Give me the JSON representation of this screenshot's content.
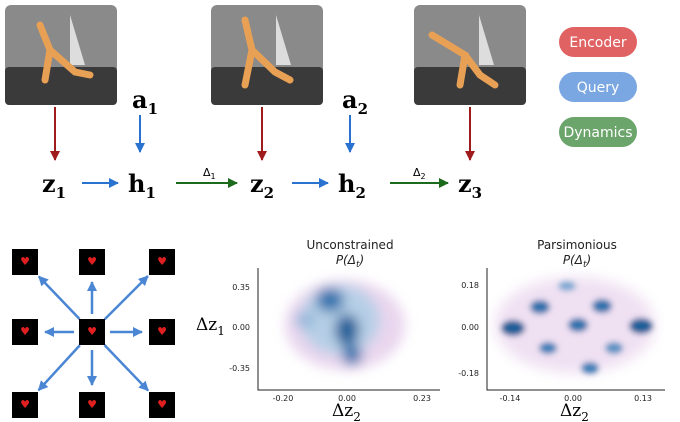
{
  "legend": [
    "Encoder",
    "Query",
    "Dynamics"
  ],
  "sequence": {
    "actions": [
      {
        "base": "a",
        "sub": "1"
      },
      {
        "base": "a",
        "sub": "2"
      }
    ],
    "states": [
      {
        "base": "z",
        "sub": "1"
      },
      {
        "base": "h",
        "sub": "1"
      },
      {
        "base": "z",
        "sub": "2"
      },
      {
        "base": "h",
        "sub": "2"
      },
      {
        "base": "z",
        "sub": "3"
      }
    ],
    "deltas": [
      {
        "base": "Δ",
        "sub": "1"
      },
      {
        "base": "Δ",
        "sub": "2"
      }
    ]
  },
  "plots": [
    {
      "title": "Unconstrained",
      "subtitle": {
        "base": "P(Δ",
        "sub": "t",
        "tail": ")"
      },
      "yticks": [
        "0.35",
        "0.00",
        "-0.35"
      ],
      "xticks": [
        "-0.20",
        "0.00",
        "0.23"
      ],
      "ylabel": {
        "base": "Δz",
        "sub": "1"
      },
      "xlabel": {
        "base": "Δz",
        "sub": "2"
      }
    },
    {
      "title": "Parsimonious",
      "subtitle": {
        "base": "P(Δ",
        "sub": "t",
        "tail": ")"
      },
      "yticks": [
        "0.18",
        "0.00",
        "-0.18"
      ],
      "xticks": [
        "-0.14",
        "0.00",
        "0.13"
      ],
      "xlabel": {
        "base": "Δz",
        "sub": "2"
      }
    }
  ]
}
